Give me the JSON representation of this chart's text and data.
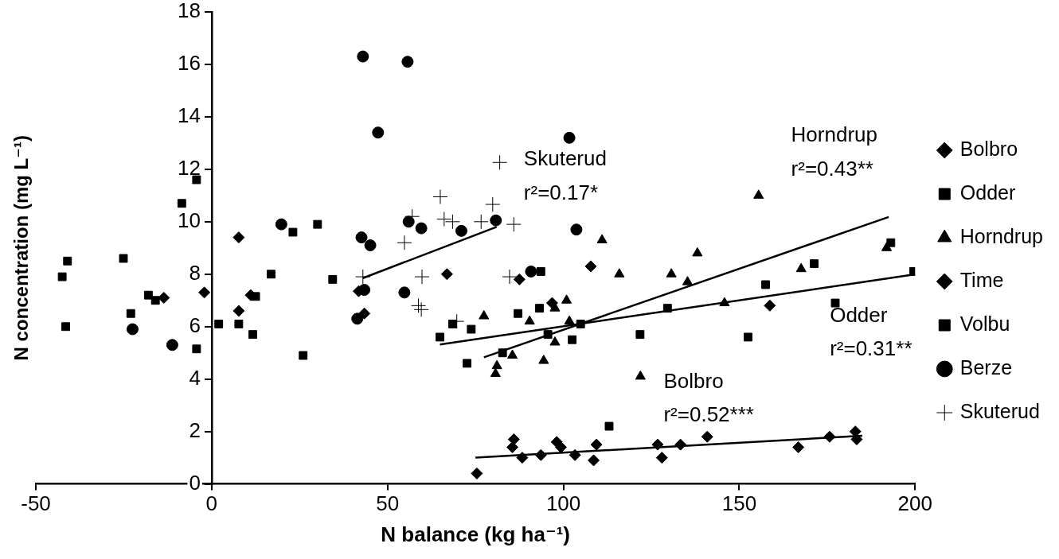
{
  "chart_data": {
    "type": "scatter",
    "xlabel": "N balance (kg ha⁻¹)",
    "ylabel": "N concentration (mg L⁻¹)",
    "xlim": [
      -50,
      200
    ],
    "xticks": [
      -50,
      0,
      50,
      100,
      150,
      200
    ],
    "ylim": [
      0,
      18
    ],
    "yticks": [
      0,
      2,
      4,
      6,
      8,
      10,
      12,
      14,
      16,
      18
    ],
    "grid": false,
    "legend": "right",
    "series": [
      {
        "name": "Bolbro",
        "color": "#000000",
        "marker": "diamond",
        "x": [
          75.4,
          85.9,
          85.5,
          88.3,
          93.6,
          98.1,
          99.3,
          103.3,
          109.4,
          108.6,
          126.8,
          128,
          133.3,
          140.9,
          166.8,
          175.7,
          183,
          183.4,
          66.9
        ],
        "values": [
          0.4,
          1.7,
          1.4,
          1.0,
          1.1,
          1.6,
          1.4,
          1.1,
          1.5,
          0.9,
          1.5,
          1.0,
          1.5,
          1.8,
          1.4,
          1.8,
          2.0,
          1.7,
          8.0
        ]
      },
      {
        "name": "Odder",
        "color": "#000000",
        "marker": "square",
        "x": [
          64.9,
          68.5,
          73.8,
          72.6,
          82.7,
          87.1,
          93.6,
          93.2,
          95.6,
          102.5,
          104.9,
          113,
          121.8,
          129.6,
          152.5,
          157.5,
          171.3,
          177.3,
          193.1,
          199.6
        ],
        "values": [
          5.6,
          6.1,
          5.9,
          4.6,
          5.0,
          6.5,
          8.1,
          6.7,
          5.7,
          5.5,
          6.1,
          2.2,
          5.7,
          6.7,
          5.6,
          7.6,
          8.4,
          6.9,
          9.2,
          8.1
        ]
      },
      {
        "name": "Horndrup",
        "color": "#000000",
        "marker": "triangle",
        "x": [
          77.4,
          80.7,
          81.1,
          85.5,
          90.4,
          94.4,
          97.6,
          97.6,
          100.9,
          101.7,
          111,
          115.9,
          121.9,
          130.7,
          135.3,
          138.1,
          145.8,
          155.5,
          167.6,
          191.9
        ],
        "values": [
          6.4,
          4.2,
          4.5,
          4.9,
          6.2,
          4.7,
          6.7,
          5.4,
          7.0,
          6.2,
          9.3,
          8.0,
          4.1,
          8.0,
          7.7,
          8.8,
          6.9,
          11.0,
          8.2,
          9.0
        ]
      },
      {
        "name": "Time",
        "color": "#000000",
        "marker": "diamond",
        "x": [
          -13.6,
          -2.1,
          7.7,
          7.7,
          11.1,
          41.8,
          43.4,
          87.5,
          96.8,
          107.8,
          158.7
        ],
        "values": [
          7.1,
          7.3,
          9.4,
          6.6,
          7.2,
          7.35,
          6.5,
          7.8,
          6.9,
          8.3,
          6.8
        ]
      },
      {
        "name": "Volbu",
        "color": "#000000",
        "marker": "square",
        "x": [
          -42.5,
          -41,
          -41.5,
          -25.1,
          -23,
          -18,
          -16,
          -8.5,
          -4.3,
          -4.3,
          2,
          7.7,
          12.5,
          11.7,
          16.9,
          23.1,
          26,
          30.1,
          34.4
        ],
        "values": [
          7.9,
          8.5,
          6.0,
          8.6,
          6.5,
          7.2,
          7.0,
          10.7,
          11.6,
          5.15,
          6.1,
          6.1,
          7.15,
          5.7,
          8.0,
          9.6,
          4.9,
          9.9,
          7.8
        ]
      },
      {
        "name": "Berze",
        "color": "#000000",
        "marker": "circle",
        "x": [
          -22.5,
          -11.2,
          19.8,
          41.4,
          42.6,
          43,
          43.4,
          45.1,
          47.3,
          54.8,
          55.7,
          56,
          59.6,
          71,
          80.8,
          90.8,
          101.7,
          103.7
        ],
        "values": [
          5.9,
          5.3,
          9.9,
          6.3,
          9.4,
          16.3,
          7.4,
          9.1,
          13.4,
          7.3,
          16.1,
          10.0,
          9.75,
          9.65,
          10.05,
          8.1,
          13.2,
          9.7
        ]
      },
      {
        "name": "Skuterud",
        "color": "#000000",
        "marker": "cross",
        "x": [
          43,
          54.8,
          57,
          58.8,
          59.6,
          59.8,
          65,
          66.1,
          68.5,
          69.7,
          76.6,
          79.9,
          81.9,
          84.7,
          85.9
        ],
        "values": [
          7.9,
          9.2,
          10.2,
          6.8,
          6.65,
          7.9,
          10.95,
          10.1,
          10.0,
          6.2,
          10.0,
          10.66,
          12.26,
          7.9,
          9.9
        ]
      },
      {
        "type": "line",
        "color": "#000000",
        "marker": "none",
        "x": [
          43,
          81
        ],
        "values": [
          7.85,
          9.8
        ]
      },
      {
        "type": "line",
        "color": "#000000",
        "marker": "none",
        "x": [
          77.4,
          192.5
        ],
        "values": [
          4.83,
          10.18
        ]
      },
      {
        "type": "line",
        "color": "#000000",
        "marker": "none",
        "x": [
          64.9,
          200
        ],
        "values": [
          5.32,
          7.99
        ]
      },
      {
        "type": "line",
        "color": "#000000",
        "marker": "none",
        "x": [
          75,
          185
        ],
        "values": [
          1.0,
          1.84
        ]
      }
    ],
    "annotations": [
      "Skuterud",
      "r²=0.17*",
      "Horndrup",
      "r²=0.43**",
      "Odder",
      "r²=0.31**",
      "Bolbro",
      "r²=0.52***"
    ]
  }
}
